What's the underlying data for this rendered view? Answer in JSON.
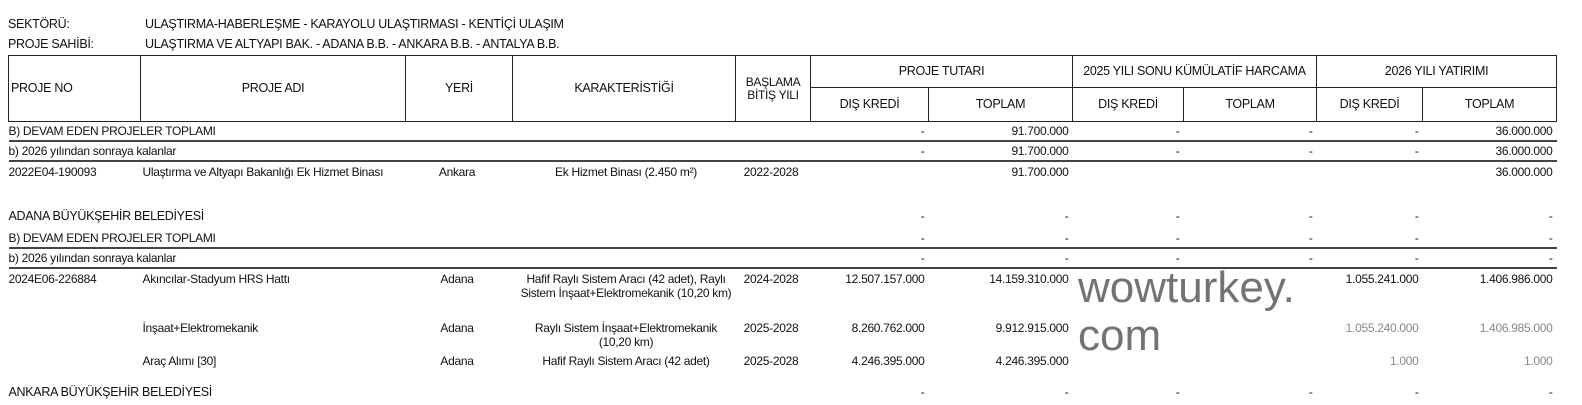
{
  "meta": {
    "sector_label": "SEKTÖRÜ:",
    "sector_value": "ULAŞTIRMA-HABERLEŞME - KARAYOLU ULAŞTIRMASI - KENTİÇİ ULAŞIM",
    "owner_label": "PROJE SAHİBİ:",
    "owner_value": "ULAŞTIRMA VE ALTYAPI BAK. - ADANA B.B. - ANKARA B.B. - ANTALYA B.B."
  },
  "header": {
    "proje_no": "PROJE NO",
    "proje_adi": "PROJE ADI",
    "yeri": "YERİ",
    "karakteristigi": "KARAKTERİSTİĞİ",
    "baslama": "BAŞLAMA BİTİŞ YILI",
    "proje_tutari": "PROJE TUTARI",
    "harcama": "2025 YILI SONU KÜMÜLATİF HARCAMA",
    "yatirim": "2026 YILI YATIRIMI",
    "dis_kredi": "DIŞ KREDİ",
    "toplam": "TOPLAM"
  },
  "rows": {
    "r1": {
      "label": "B) DEVAM EDEN PROJELER TOPLAMI",
      "v": [
        "-",
        "91.700.000",
        "-",
        "-",
        "-",
        "36.000.000"
      ]
    },
    "r2": {
      "label": "b) 2026 yılından sonraya kalanlar",
      "v": [
        "-",
        "91.700.000",
        "-",
        "-",
        "-",
        "36.000.000"
      ]
    },
    "r3": {
      "no": "2022E04-190093",
      "name": "Ulaştırma ve Altyapı Bakanlığı Ek Hizmet Binası",
      "place": "Ankara",
      "char": "Ek Hizmet Binası (2.450 m²)",
      "years": "2022-2028",
      "v": [
        "",
        "91.700.000",
        "",
        "",
        "",
        "36.000.000"
      ]
    },
    "r4": {
      "label": "ADANA BÜYÜKŞEHİR BELEDİYESİ",
      "v": [
        "-",
        "-",
        "-",
        "-",
        "-",
        "-"
      ]
    },
    "r5": {
      "label": "B) DEVAM EDEN PROJELER TOPLAMI",
      "v": [
        "-",
        "-",
        "-",
        "-",
        "-",
        "-"
      ]
    },
    "r6": {
      "label": "b) 2026 yılından sonraya kalanlar",
      "v": [
        "-",
        "-",
        "-",
        "-",
        "-",
        "-"
      ]
    },
    "r7": {
      "no": "2024E06-226884",
      "name": "Akıncılar-Stadyum HRS Hattı",
      "place": "Adana",
      "char": "Hafif Raylı Sistem Aracı (42 adet), Raylı Sistem İnşaat+Elektromekanik (10,20 km)",
      "years": "2024-2028",
      "v": [
        "12.507.157.000",
        "14.159.310.000",
        "",
        "",
        "1.055.241.000",
        "1.406.986.000"
      ]
    },
    "r8": {
      "no": "",
      "name": "İnşaat+Elektromekanik",
      "place": "Adana",
      "char": "Raylı Sistem İnşaat+Elektromekanik (10,20 km)",
      "years": "2025-2028",
      "v": [
        "8.260.762.000",
        "9.912.915.000",
        "",
        "",
        "1.055.240.000",
        "1.406.985.000"
      ]
    },
    "r9": {
      "no": "",
      "name": "Araç Alımı [30]",
      "place": "Adana",
      "char": "Hafif Raylı Sistem Aracı (42 adet)",
      "years": "2025-2028",
      "v": [
        "4.246.395.000",
        "4.246.395.000",
        "",
        "",
        "1.000",
        "1.000"
      ]
    },
    "r10": {
      "label": "ANKARA BÜYÜKŞEHİR BELEDİYESİ",
      "v": [
        "-",
        "-",
        "-",
        "-",
        "-",
        "-"
      ]
    }
  },
  "watermark": "wowturkey.com"
}
